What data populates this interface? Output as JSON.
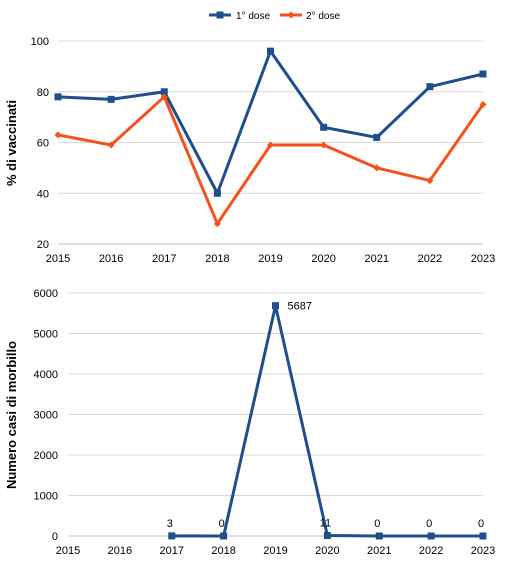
{
  "colors": {
    "dose1": "#1f4e8c",
    "dose2": "#f4511e",
    "grid": "#d9d9d9"
  },
  "chart_data": [
    {
      "type": "line",
      "ylabel": "% di vaccinati",
      "xlabel": "",
      "x": [
        "2015",
        "2016",
        "2017",
        "2018",
        "2019",
        "2020",
        "2021",
        "2022",
        "2023"
      ],
      "ylim": [
        20,
        100
      ],
      "yticks": [
        "20",
        "40",
        "60",
        "80",
        "100"
      ],
      "grid": true,
      "legend": "top-center",
      "series": [
        {
          "name": "1° dose",
          "marker": "square",
          "values": [
            78,
            77,
            80,
            40,
            96,
            66,
            62,
            82,
            87
          ]
        },
        {
          "name": "2° dose",
          "marker": "diamond",
          "values": [
            63,
            59,
            78,
            28,
            59,
            59,
            50,
            45,
            75
          ]
        }
      ]
    },
    {
      "type": "line",
      "ylabel": "Numero casi di morbillo",
      "xlabel": "",
      "x": [
        "2015",
        "2016",
        "2017",
        "2018",
        "2019",
        "2020",
        "2021",
        "2022",
        "2023"
      ],
      "ylim": [
        0,
        6000
      ],
      "yticks": [
        "0",
        "1000",
        "2000",
        "3000",
        "4000",
        "5000",
        "6000"
      ],
      "grid": true,
      "series": [
        {
          "name": "",
          "marker": "square",
          "x": [
            "2017",
            "2018",
            "2019",
            "2020",
            "2021",
            "2022",
            "2023"
          ],
          "values": [
            3,
            0,
            5687,
            11,
            0,
            0,
            0
          ],
          "labels": [
            "3",
            "0",
            "5687",
            "11",
            "0",
            "0",
            "0"
          ]
        }
      ]
    }
  ]
}
